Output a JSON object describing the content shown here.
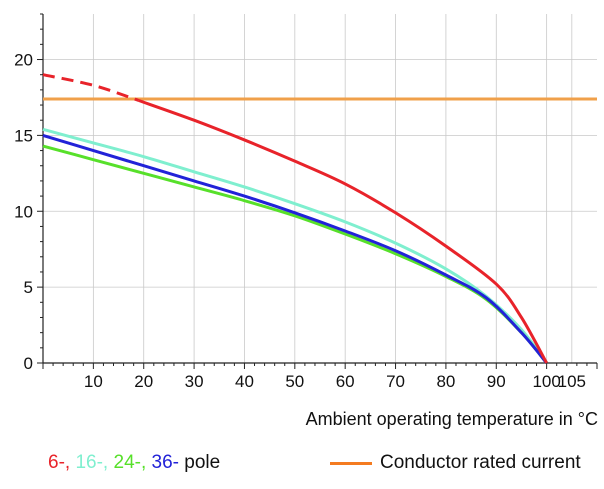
{
  "chart_data": {
    "type": "line",
    "xlabel": "Ambient operating temperature in °C",
    "ylabel": "",
    "xlim": [
      0,
      110
    ],
    "ylim": [
      0,
      23
    ],
    "x_ticks": [
      10,
      20,
      30,
      40,
      50,
      60,
      70,
      80,
      90,
      100,
      105
    ],
    "y_ticks": [
      0,
      5,
      10,
      15,
      20
    ],
    "grid": true,
    "series": [
      {
        "name": "6-",
        "color": "#e8232a",
        "dashed_until_x": 19,
        "x": [
          0,
          10,
          19,
          30,
          40,
          50,
          60,
          70,
          80,
          90,
          95,
          100
        ],
        "y": [
          19.0,
          18.3,
          17.3,
          16.0,
          14.7,
          13.3,
          11.8,
          9.9,
          7.7,
          5.2,
          3.0,
          0.0
        ]
      },
      {
        "name": "16-",
        "color": "#7fefcf",
        "x": [
          0,
          10,
          20,
          30,
          40,
          50,
          60,
          70,
          80,
          88,
          95,
          100
        ],
        "y": [
          15.4,
          14.5,
          13.6,
          12.6,
          11.6,
          10.5,
          9.3,
          7.9,
          6.2,
          4.4,
          2.2,
          0.0
        ]
      },
      {
        "name": "24-",
        "color": "#57e02a",
        "x": [
          0,
          10,
          20,
          30,
          40,
          50,
          60,
          70,
          80,
          88,
          95,
          100
        ],
        "y": [
          14.3,
          13.4,
          12.5,
          11.6,
          10.7,
          9.7,
          8.5,
          7.2,
          5.7,
          4.2,
          2.0,
          0.0
        ]
      },
      {
        "name": "36-",
        "color": "#2222d8",
        "x": [
          0,
          10,
          20,
          30,
          40,
          50,
          60,
          70,
          80,
          88,
          95,
          100
        ],
        "y": [
          15.0,
          14.0,
          13.0,
          12.0,
          11.0,
          9.9,
          8.7,
          7.4,
          5.8,
          4.3,
          2.0,
          0.0
        ]
      },
      {
        "name": "Conductor rated current",
        "color": "#f0a04a",
        "x": [
          0,
          110
        ],
        "y": [
          17.4,
          17.4
        ]
      }
    ]
  },
  "legend": {
    "poles": [
      {
        "text": "6-,",
        "color": "#e8232a"
      },
      {
        "text": " 16-,",
        "color": "#7fefcf"
      },
      {
        "text": " 24-,",
        "color": "#57e02a"
      },
      {
        "text": " 36-",
        "color": "#2222d8"
      },
      {
        "text": "pole",
        "color": "#111111"
      }
    ],
    "conductor": {
      "text": "Conductor rated current",
      "color": "#f47b20"
    }
  }
}
